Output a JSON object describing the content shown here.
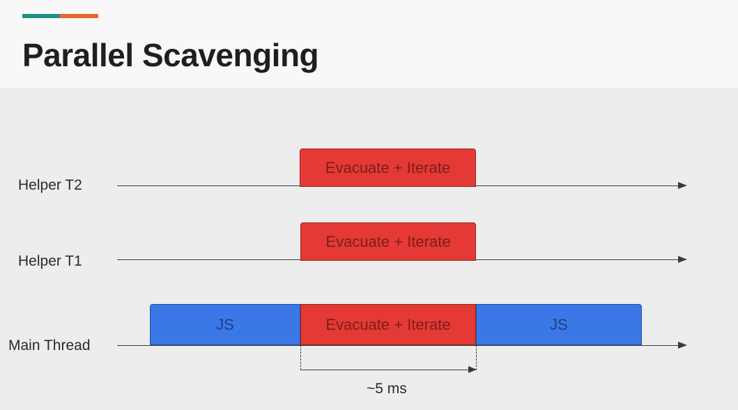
{
  "slide": {
    "title": "Parallel Scavenging",
    "accent_colors": {
      "teal": "#1e9183",
      "orange": "#e36a2c"
    }
  },
  "colors": {
    "evacuate_block": "#e53935",
    "evacuate_text": "#7a1f1a",
    "js_block": "#3b78e7",
    "js_text": "#1e3f86"
  },
  "rows": {
    "helper_t2": {
      "label": "Helper T2",
      "block": "Evacuate + Iterate"
    },
    "helper_t1": {
      "label": "Helper T1",
      "block": "Evacuate + Iterate"
    },
    "main_thread": {
      "label": "Main Thread",
      "js_before": "JS",
      "block": "Evacuate + Iterate",
      "js_after": "JS"
    }
  },
  "duration_label": "~5 ms"
}
